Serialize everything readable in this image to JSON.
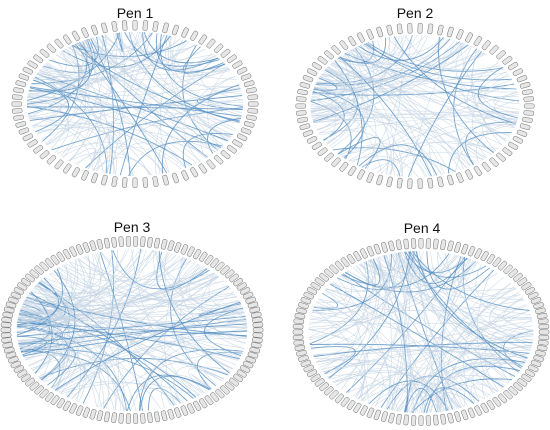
{
  "panels": [
    {
      "title": "Pen 1"
    },
    {
      "title": "Pen 2"
    },
    {
      "title": "Pen 3"
    },
    {
      "title": "Pen 4"
    }
  ]
}
